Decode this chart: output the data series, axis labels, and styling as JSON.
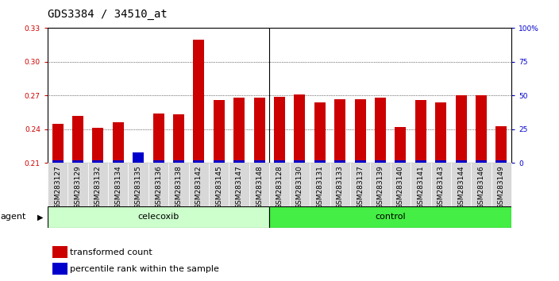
{
  "title": "GDS3384 / 34510_at",
  "samples": [
    "GSM283127",
    "GSM283129",
    "GSM283132",
    "GSM283134",
    "GSM283135",
    "GSM283136",
    "GSM283138",
    "GSM283142",
    "GSM283145",
    "GSM283147",
    "GSM283148",
    "GSM283128",
    "GSM283130",
    "GSM283131",
    "GSM283133",
    "GSM283137",
    "GSM283139",
    "GSM283140",
    "GSM283141",
    "GSM283143",
    "GSM283144",
    "GSM283146",
    "GSM283149"
  ],
  "red_values": [
    0.245,
    0.252,
    0.241,
    0.246,
    0.214,
    0.254,
    0.253,
    0.32,
    0.266,
    0.268,
    0.268,
    0.269,
    0.271,
    0.264,
    0.267,
    0.267,
    0.268,
    0.242,
    0.266,
    0.264,
    0.27,
    0.27,
    0.243
  ],
  "blue_pct": [
    2,
    2,
    2,
    2,
    8,
    2,
    2,
    2,
    2,
    2,
    2,
    2,
    2,
    2,
    2,
    2,
    2,
    2,
    2,
    2,
    2,
    2,
    2
  ],
  "celecoxib_count": 11,
  "control_count": 12,
  "ymin": 0.21,
  "ymax": 0.33,
  "yticks": [
    0.21,
    0.24,
    0.27,
    0.3,
    0.33
  ],
  "ytick_labels": [
    "0.21",
    "0.24",
    "0.27",
    "0.30",
    "0.33"
  ],
  "right_yticks": [
    0,
    25,
    50,
    75,
    100
  ],
  "right_ytick_labels": [
    "0",
    "25",
    "50",
    "75",
    "100%"
  ],
  "grid_values": [
    0.24,
    0.27,
    0.3
  ],
  "bar_width": 0.55,
  "red_color": "#cc0000",
  "blue_color": "#0000cc",
  "celecoxib_color": "#ccffcc",
  "control_color": "#44ee44",
  "agent_label": "agent",
  "celecoxib_label": "celecoxib",
  "control_label": "control",
  "legend_red": "transformed count",
  "legend_blue": "percentile rank within the sample",
  "title_fontsize": 10,
  "tick_fontsize": 6.5,
  "label_fontsize": 8,
  "axis_label_color_left": "#cc0000",
  "axis_label_color_right": "#0000cc",
  "bg_color": "#ffffff",
  "tick_label_bg": "#d8d8d8"
}
